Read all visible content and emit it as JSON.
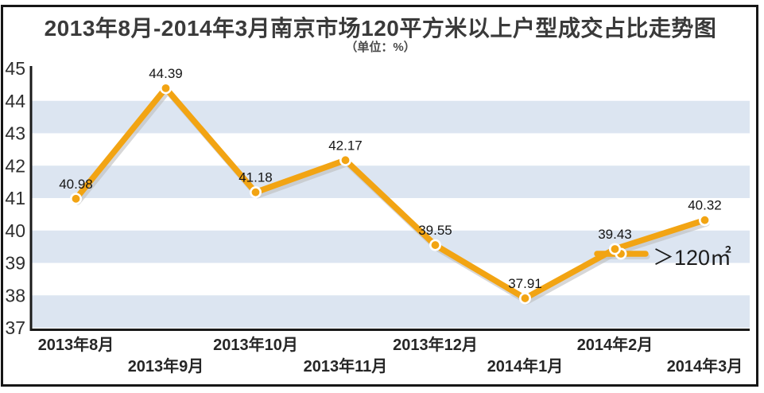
{
  "title": "2013年8月-2014年3月南京市场120平方米以上户型成交占比走势图",
  "subtitle": "（单位：%）",
  "chart_data": {
    "type": "line",
    "title": "2013年8月-2014年3月南京市场120平方米以上户型成交占比走势图",
    "subtitle": "（单位：%）",
    "categories": [
      "2013年8月",
      "2013年9月",
      "2013年10月",
      "2013年11月",
      "2013年12月",
      "2014年1月",
      "2014年2月",
      "2014年3月"
    ],
    "values": [
      40.98,
      44.39,
      41.18,
      42.17,
      39.55,
      37.91,
      39.43,
      40.32
    ],
    "legend": "＞120㎡",
    "legend_position": "middle-right",
    "ylabel": "",
    "xlabel": "",
    "ylim": [
      37,
      45
    ],
    "y_ticks": [
      37,
      38,
      39,
      40,
      41,
      42,
      43,
      44,
      45
    ],
    "grid": "alternating-horizontal-bands",
    "x_label_layout": "staggered-two-rows",
    "colors": {
      "line": "#F2A413",
      "marker_fill": "#F2A413",
      "marker_ring": "#FFFFFF",
      "band": "#DCE5F1",
      "shadow": "#BCBCBC",
      "axis": "#1A1A1A",
      "data_label": "#151515",
      "tick_label": "#2E2E2E",
      "category_label": "#262626"
    }
  }
}
